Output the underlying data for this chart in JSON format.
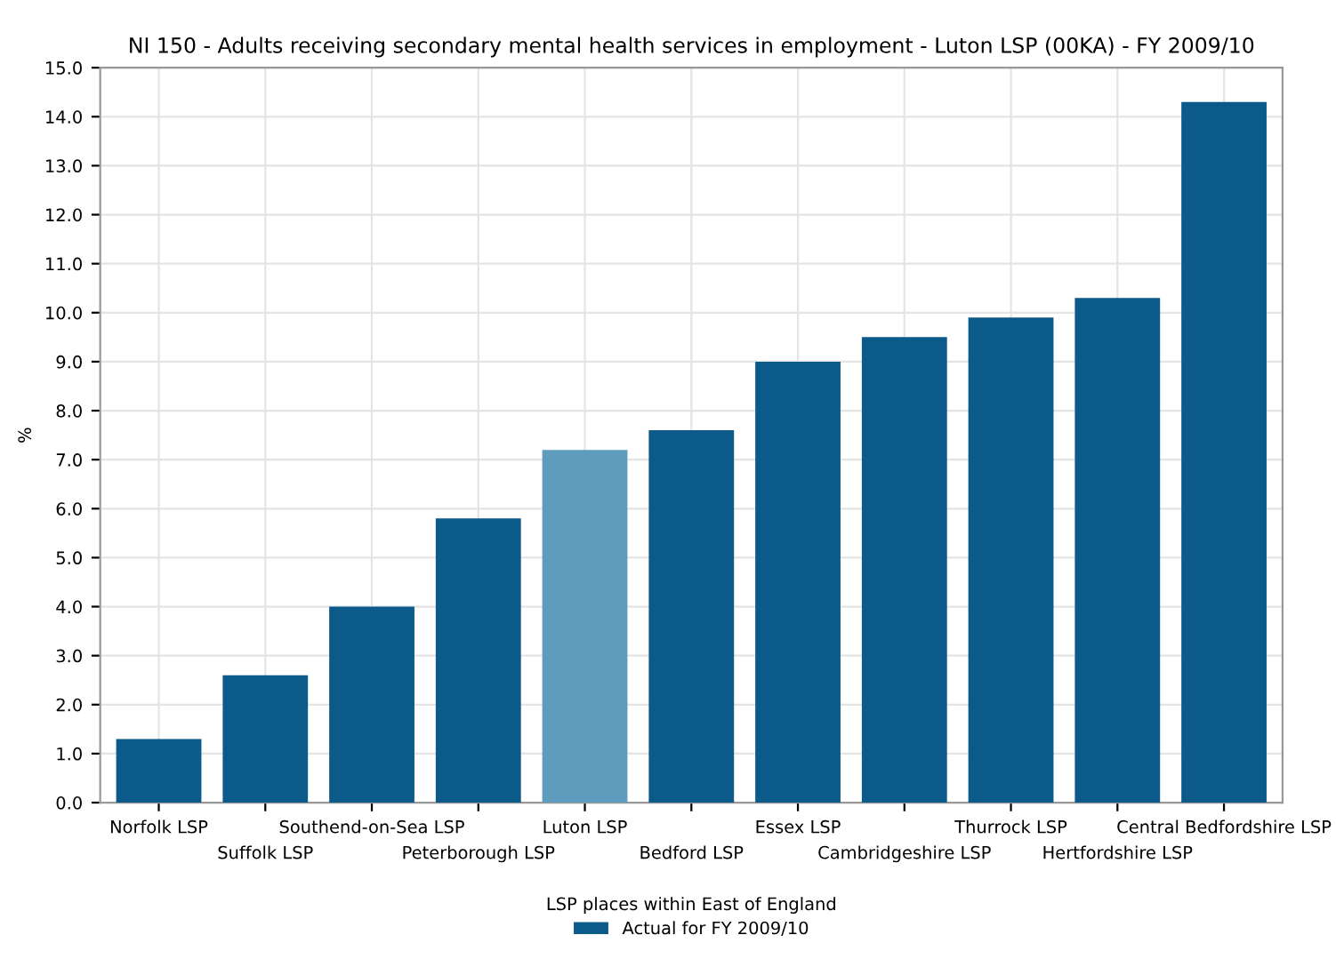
{
  "chart_data": {
    "type": "bar",
    "title": "NI 150 - Adults receiving secondary mental health services in employment - Luton LSP (00KA) - FY 2009/10",
    "xlabel": "LSP places within East of England",
    "ylabel": "%",
    "categories": [
      "Norfolk LSP",
      "Suffolk LSP",
      "Southend-on-Sea LSP",
      "Peterborough LSP",
      "Luton LSP",
      "Bedford LSP",
      "Essex LSP",
      "Cambridgeshire LSP",
      "Thurrock LSP",
      "Hertfordshire LSP",
      "Central Bedfordshire LSP"
    ],
    "series": [
      {
        "name": "Actual for FY 2009/10",
        "color": "#0b5a8a",
        "colors": [
          "#0b5a8a",
          "#0b5a8a",
          "#0b5a8a",
          "#0b5a8a",
          "#5f9bbd",
          "#0b5a8a",
          "#0b5a8a",
          "#0b5a8a",
          "#0b5a8a",
          "#0b5a8a",
          "#0b5a8a"
        ],
        "values": [
          1.3,
          2.6,
          4.0,
          5.8,
          7.2,
          7.6,
          9.0,
          9.5,
          9.9,
          10.3,
          14.3
        ]
      }
    ],
    "ylim": [
      0,
      15
    ],
    "yticks": [
      {
        "value": 0,
        "label": "0.0"
      },
      {
        "value": 1,
        "label": "1.0"
      },
      {
        "value": 2,
        "label": "2.0"
      },
      {
        "value": 3,
        "label": "3.0"
      },
      {
        "value": 4,
        "label": "4.0"
      },
      {
        "value": 5,
        "label": "5.0"
      },
      {
        "value": 6,
        "label": "6.0"
      },
      {
        "value": 7,
        "label": "7.0"
      },
      {
        "value": 8,
        "label": "8.0"
      },
      {
        "value": 9,
        "label": "9.0"
      },
      {
        "value": 10,
        "label": "10.0"
      },
      {
        "value": 11,
        "label": "11.0"
      },
      {
        "value": 12,
        "label": "12.0"
      },
      {
        "value": 13,
        "label": "13.0"
      },
      {
        "value": 14,
        "label": "14.0"
      },
      {
        "value": 15,
        "label": "15.0"
      }
    ],
    "grid": true,
    "legend": "bottom"
  }
}
